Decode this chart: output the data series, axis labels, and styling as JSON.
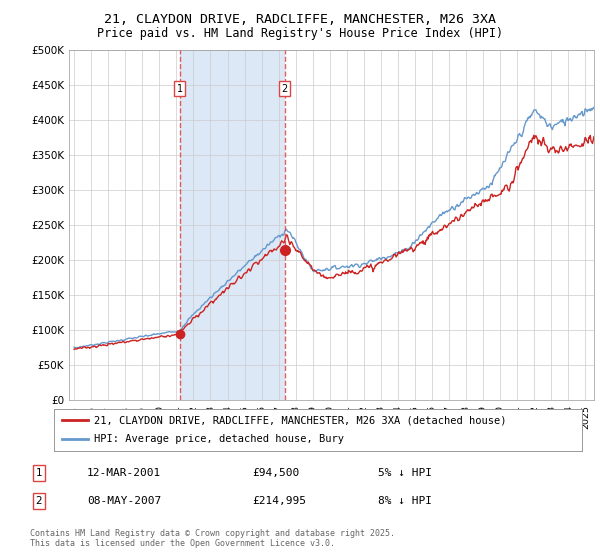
{
  "title_line1": "21, CLAYDON DRIVE, RADCLIFFE, MANCHESTER, M26 3XA",
  "title_line2": "Price paid vs. HM Land Registry's House Price Index (HPI)",
  "background_color": "#ffffff",
  "plot_bg_color": "#ffffff",
  "shaded_region_color": "#dce8f5",
  "legend_line1": "21, CLAYDON DRIVE, RADCLIFFE, MANCHESTER, M26 3XA (detached house)",
  "legend_line2": "HPI: Average price, detached house, Bury",
  "annotation1_date": "12-MAR-2001",
  "annotation1_price": "£94,500",
  "annotation1_note": "5% ↓ HPI",
  "annotation2_date": "08-MAY-2007",
  "annotation2_price": "£214,995",
  "annotation2_note": "8% ↓ HPI",
  "footer": "Contains HM Land Registry data © Crown copyright and database right 2025.\nThis data is licensed under the Open Government Licence v3.0.",
  "red_color": "#cc2222",
  "blue_color": "#6699cc",
  "vline_color": "#dd4444",
  "x_start_year": 1995,
  "x_end_year": 2025,
  "ylim_min": 0,
  "ylim_max": 500000,
  "yticks": [
    0,
    50000,
    100000,
    150000,
    200000,
    250000,
    300000,
    350000,
    400000,
    450000,
    500000
  ],
  "ytick_labels": [
    "£0",
    "£50K",
    "£100K",
    "£150K",
    "£200K",
    "£250K",
    "£300K",
    "£350K",
    "£400K",
    "£450K",
    "£500K"
  ],
  "sale1_year": 2001.19,
  "sale1_price": 94500,
  "sale2_year": 2007.36,
  "sale2_price": 214995
}
